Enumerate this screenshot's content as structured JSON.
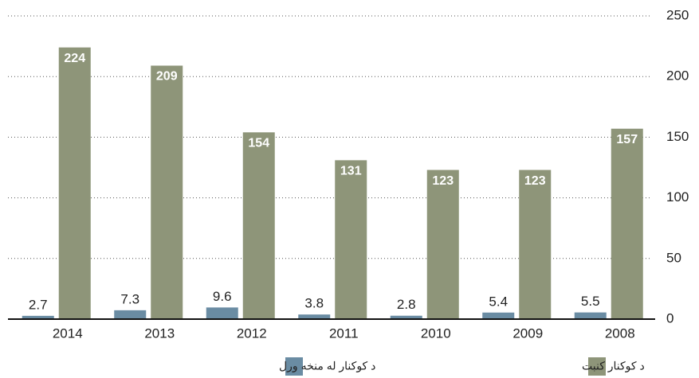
{
  "chart_data": {
    "type": "bar",
    "categories": [
      "2014",
      "2013",
      "2012",
      "2011",
      "2010",
      "2009",
      "2008"
    ],
    "series": [
      {
        "name": "د کوکنار له منخه ورل",
        "color": "#6a8ca3",
        "values": [
          2.7,
          7.3,
          9.6,
          3.8,
          2.8,
          5.4,
          5.5
        ]
      },
      {
        "name": "د کوکنار کنبت",
        "color": "#8e9579",
        "values": [
          224,
          209,
          154,
          131,
          123,
          123,
          157
        ]
      }
    ],
    "ylim": [
      0,
      250
    ],
    "yticks": [
      0,
      50,
      100,
      150,
      200,
      250
    ],
    "grid": true
  }
}
